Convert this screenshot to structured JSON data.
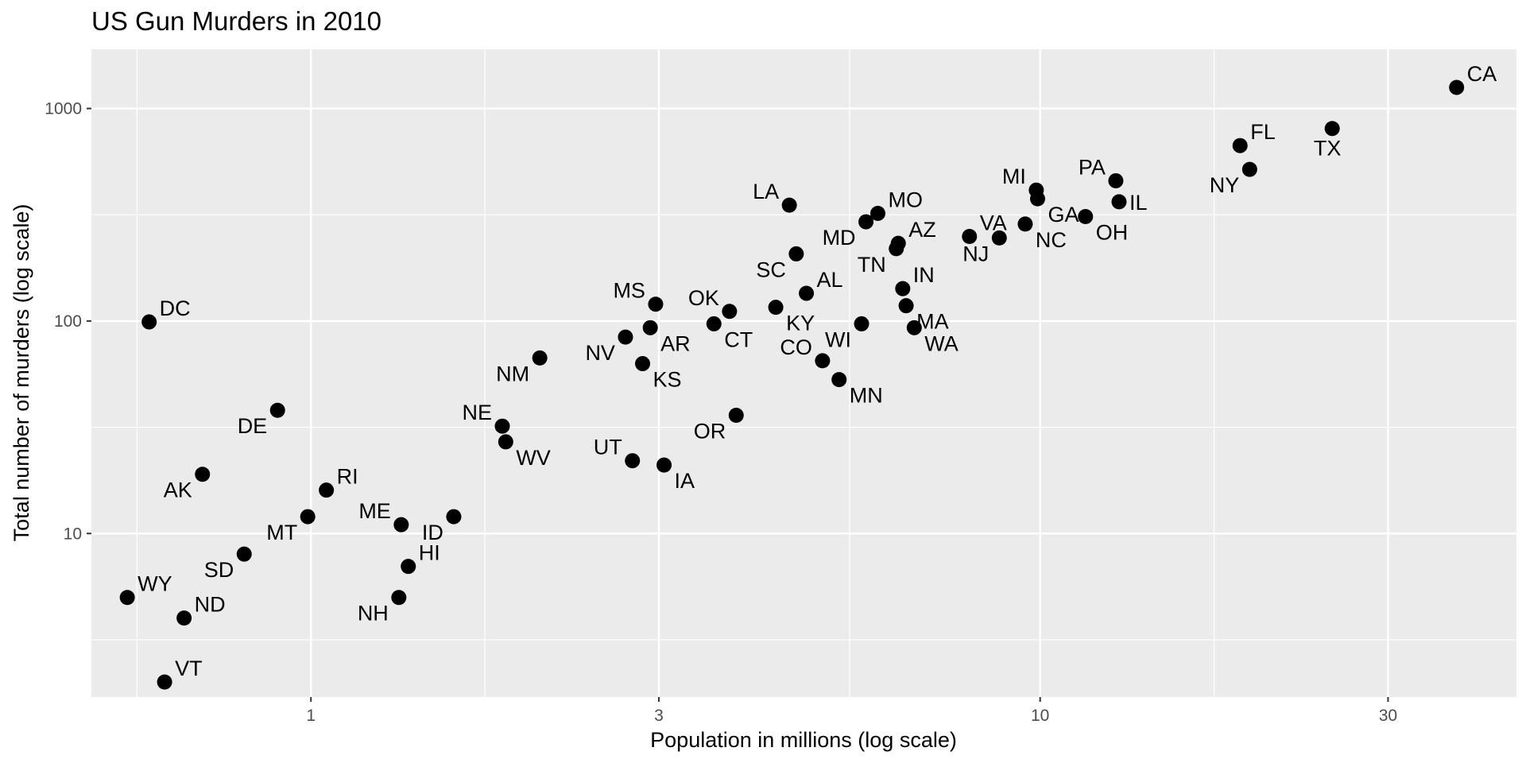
{
  "chart_data": {
    "type": "scatter",
    "title": "US Gun Murders in 2010",
    "xlabel": "Population in millions (log scale)",
    "ylabel": "Total number of murders (log scale)",
    "x_scale": "log10",
    "y_scale": "log10",
    "xlim": [
      0.5,
      45
    ],
    "ylim": [
      1.7,
      1900
    ],
    "x_ticks": [
      {
        "value": 1,
        "label": "1"
      },
      {
        "value": 3,
        "label": "3"
      },
      {
        "value": 10,
        "label": "10"
      },
      {
        "value": 30,
        "label": "30"
      }
    ],
    "y_ticks": [
      {
        "value": 10,
        "label": "10"
      },
      {
        "value": 100,
        "label": "100"
      },
      {
        "value": 1000,
        "label": "1000"
      }
    ],
    "grid": true,
    "points": [
      {
        "label": "CA",
        "x": 37.25,
        "y": 1257,
        "pos": "ne"
      },
      {
        "label": "TX",
        "x": 25.15,
        "y": 805,
        "pos": "s"
      },
      {
        "label": "FL",
        "x": 18.8,
        "y": 669,
        "pos": "ne"
      },
      {
        "label": "NY",
        "x": 19.38,
        "y": 517,
        "pos": "sw"
      },
      {
        "label": "PA",
        "x": 12.7,
        "y": 457,
        "pos": "nw"
      },
      {
        "label": "IL",
        "x": 12.83,
        "y": 364,
        "pos": "e"
      },
      {
        "label": "MI",
        "x": 9.88,
        "y": 413,
        "pos": "nw"
      },
      {
        "label": "GA",
        "x": 9.92,
        "y": 376,
        "pos": "se"
      },
      {
        "label": "OH",
        "x": 11.54,
        "y": 310,
        "pos": "se"
      },
      {
        "label": "NC",
        "x": 9.54,
        "y": 286,
        "pos": "se"
      },
      {
        "label": "VA",
        "x": 8.0,
        "y": 250,
        "pos": "ne"
      },
      {
        "label": "NJ",
        "x": 8.79,
        "y": 246,
        "pos": "sw"
      },
      {
        "label": "LA",
        "x": 4.53,
        "y": 351,
        "pos": "nw"
      },
      {
        "label": "MO",
        "x": 5.99,
        "y": 321,
        "pos": "ne"
      },
      {
        "label": "MD",
        "x": 5.77,
        "y": 293,
        "pos": "sw"
      },
      {
        "label": "AZ",
        "x": 6.39,
        "y": 232,
        "pos": "ne"
      },
      {
        "label": "TN",
        "x": 6.35,
        "y": 219,
        "pos": "sw"
      },
      {
        "label": "SC",
        "x": 4.63,
        "y": 207,
        "pos": "sw"
      },
      {
        "label": "IN",
        "x": 6.48,
        "y": 142,
        "pos": "ne"
      },
      {
        "label": "MA",
        "x": 6.55,
        "y": 118,
        "pos": "se"
      },
      {
        "label": "AL",
        "x": 4.78,
        "y": 135,
        "pos": "ne"
      },
      {
        "label": "KY",
        "x": 4.34,
        "y": 116,
        "pos": "se"
      },
      {
        "label": "WA",
        "x": 6.72,
        "y": 93,
        "pos": "se"
      },
      {
        "label": "WI",
        "x": 5.69,
        "y": 97,
        "pos": "sw"
      },
      {
        "label": "CO",
        "x": 5.03,
        "y": 65,
        "pos": "nw"
      },
      {
        "label": "MN",
        "x": 5.3,
        "y": 53,
        "pos": "se"
      },
      {
        "label": "OK",
        "x": 3.75,
        "y": 111,
        "pos": "nw"
      },
      {
        "label": "CT",
        "x": 3.57,
        "y": 97,
        "pos": "se"
      },
      {
        "label": "MS",
        "x": 2.97,
        "y": 120,
        "pos": "nw"
      },
      {
        "label": "AR",
        "x": 2.92,
        "y": 93,
        "pos": "se"
      },
      {
        "label": "NV",
        "x": 2.7,
        "y": 84,
        "pos": "sw"
      },
      {
        "label": "KS",
        "x": 2.85,
        "y": 63,
        "pos": "se"
      },
      {
        "label": "NM",
        "x": 2.06,
        "y": 67,
        "pos": "sw"
      },
      {
        "label": "OR",
        "x": 3.83,
        "y": 36,
        "pos": "sw"
      },
      {
        "label": "NE",
        "x": 1.83,
        "y": 32,
        "pos": "nw"
      },
      {
        "label": "WV",
        "x": 1.85,
        "y": 27,
        "pos": "se"
      },
      {
        "label": "UT",
        "x": 2.76,
        "y": 22,
        "pos": "nw"
      },
      {
        "label": "IA",
        "x": 3.05,
        "y": 21,
        "pos": "se"
      },
      {
        "label": "DC",
        "x": 0.6,
        "y": 99,
        "pos": "ne"
      },
      {
        "label": "DE",
        "x": 0.9,
        "y": 38,
        "pos": "sw"
      },
      {
        "label": "AK",
        "x": 0.71,
        "y": 19,
        "pos": "sw"
      },
      {
        "label": "RI",
        "x": 1.05,
        "y": 16,
        "pos": "ne"
      },
      {
        "label": "MT",
        "x": 0.99,
        "y": 12,
        "pos": "sw"
      },
      {
        "label": "ME",
        "x": 1.33,
        "y": 11,
        "pos": "nw"
      },
      {
        "label": "ID",
        "x": 1.57,
        "y": 12,
        "pos": "sw"
      },
      {
        "label": "SD",
        "x": 0.81,
        "y": 8,
        "pos": "sw"
      },
      {
        "label": "HI",
        "x": 1.36,
        "y": 7,
        "pos": "ne"
      },
      {
        "label": "NH",
        "x": 1.32,
        "y": 5,
        "pos": "sw"
      },
      {
        "label": "WY",
        "x": 0.56,
        "y": 5,
        "pos": "ne"
      },
      {
        "label": "ND",
        "x": 0.67,
        "y": 4,
        "pos": "ne"
      },
      {
        "label": "VT",
        "x": 0.63,
        "y": 2,
        "pos": "ne"
      }
    ]
  }
}
